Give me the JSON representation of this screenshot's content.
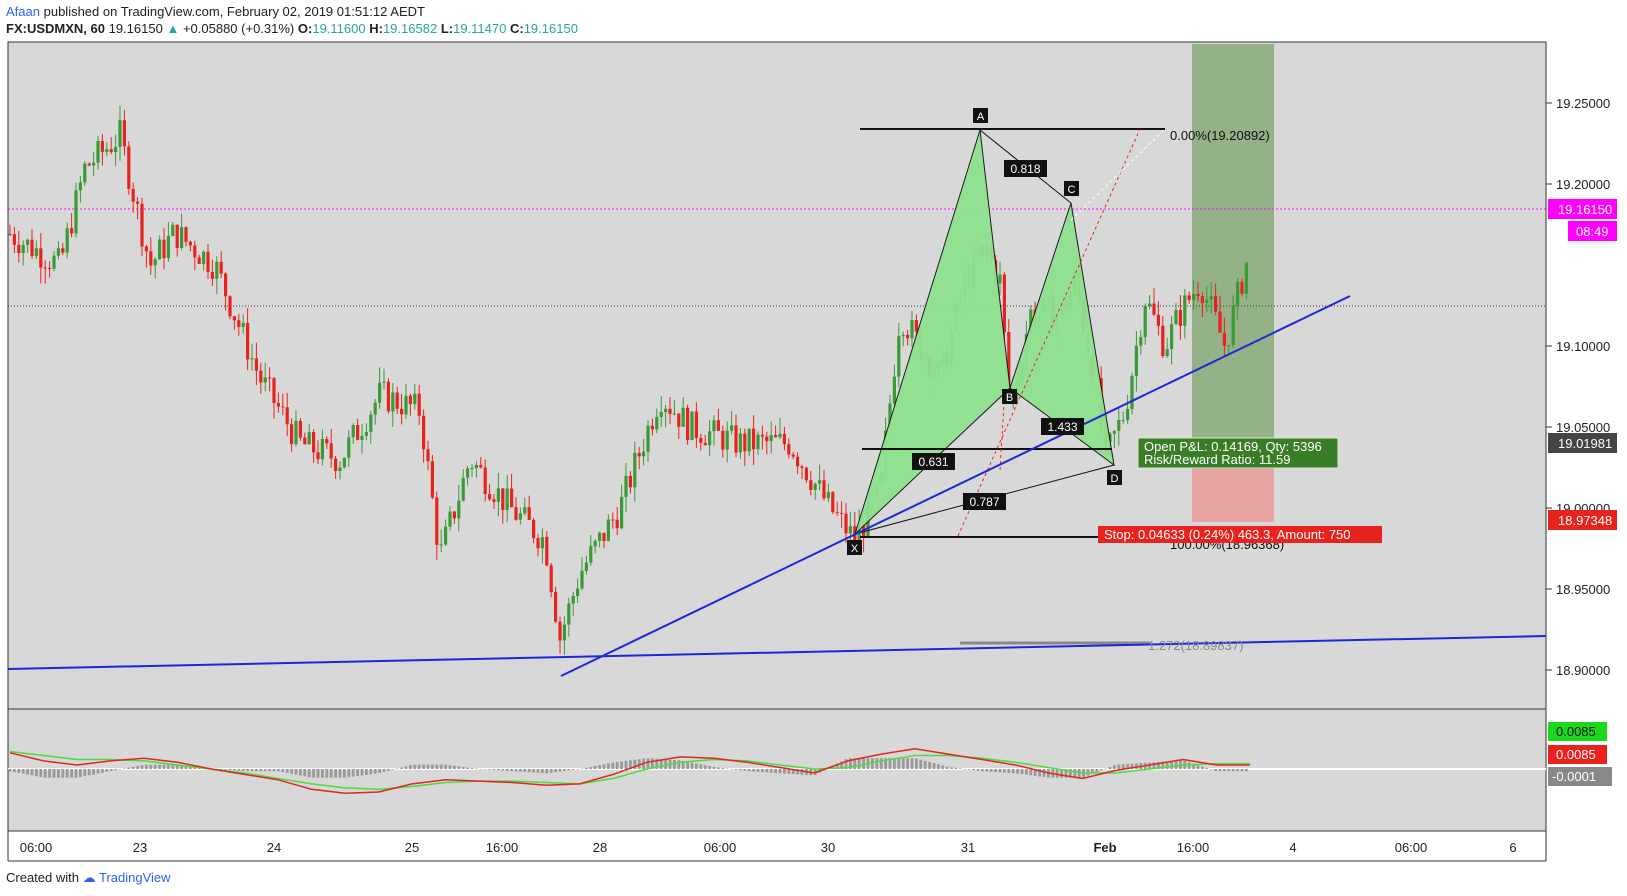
{
  "header": {
    "author": "Afaan",
    "published_text": "published on TradingView.com, February 02, 2019 01:51:12 AEDT",
    "symbol": "FX:USDMXN, 60",
    "last": "19.16150",
    "change": "+0.05880 (+0.31%)",
    "open_label": "O:",
    "open": "19.11600",
    "high_label": "H:",
    "high": "19.16582",
    "low_label": "L:",
    "low": "19.11470",
    "close_label": "C:",
    "close": "19.16150"
  },
  "footer": {
    "created_with": "Created with",
    "brand": "TradingView"
  },
  "colors": {
    "up": "#3a9a36",
    "down": "#e8231d",
    "trend": "#1d28d8",
    "pattern_fill": "#8fe28f",
    "target_zone": "#8aaa7a",
    "stop_zone": "#e8a3a3",
    "price_tag": "#ff00ff",
    "macd_line": "#e02424",
    "signal_line": "#4ddc3c",
    "histogram": "#9a9a9a"
  },
  "chart_data": {
    "type": "candlestick",
    "symbol": "FX:USDMXN",
    "interval": "60",
    "y_axis_ticks": [
      "19.25000",
      "19.20000",
      "19.10000",
      "19.05000",
      "19.00000",
      "18.95000",
      "18.90000"
    ],
    "x_axis_ticks": [
      "06:00",
      "23",
      "24",
      "25",
      "16:00",
      "28",
      "06:00",
      "30",
      "31",
      "Feb",
      "16:00",
      "4",
      "06:00",
      "6"
    ],
    "ylim": [
      18.86,
      19.27
    ],
    "price_tags": {
      "last_price": "19.16150",
      "countdown": "08:49",
      "crosshair_price": "19.01981",
      "stop_price": "18.97348"
    },
    "harmonic_pattern": {
      "points": {
        "X": 18.9637,
        "A": 19.2089,
        "B": 19.0551,
        "C": 19.164,
        "D": 19.008
      },
      "labels": [
        "X",
        "A",
        "B",
        "C",
        "D"
      ],
      "ratios": [
        "0.818",
        "0.631",
        "1.433",
        "0.787"
      ],
      "fib_levels": [
        "0.00%(19.20892)",
        "100.00%(18.96368)",
        "1.272(18.89837)"
      ]
    },
    "position": {
      "open_pnl": "Open P&L: 0.14169, Qty: 5396",
      "risk_reward": "Risk/Reward Ratio: 11.59",
      "stop": "Stop: 0.04633 (0.24%) 463.3, Amount: 750"
    },
    "macd": {
      "labels": [
        "0.0085",
        "0.0085",
        "-0.0001"
      ],
      "macd_line": [
        0.006,
        0.003,
        0.0015,
        0.003,
        0.004,
        0.0025,
        0.0,
        -0.002,
        -0.004,
        -0.0075,
        -0.009,
        -0.0085,
        -0.0055,
        -0.004,
        -0.0045,
        -0.005,
        -0.006,
        -0.0055,
        -0.002,
        0.0025,
        0.0045,
        0.004,
        0.0025,
        0.0005,
        -0.0015,
        0.003,
        0.0055,
        0.0075,
        0.0055,
        0.0035,
        0.0015,
        -0.0015,
        -0.0035,
        -0.0005,
        0.0015,
        0.0035,
        0.0015,
        0.0015
      ],
      "signal_line": [
        0.0065,
        0.005,
        0.0035,
        0.0035,
        0.003,
        0.0015,
        0.0,
        -0.0015,
        -0.0035,
        -0.0055,
        -0.007,
        -0.0075,
        -0.0065,
        -0.005,
        -0.0045,
        -0.0045,
        -0.005,
        -0.0055,
        -0.0035,
        0.0,
        0.0025,
        0.0035,
        0.003,
        0.0015,
        0.0,
        0.0005,
        0.003,
        0.005,
        0.005,
        0.004,
        0.0025,
        0.0005,
        -0.0015,
        -0.0015,
        0.0,
        0.0015,
        0.002,
        0.002
      ]
    }
  }
}
